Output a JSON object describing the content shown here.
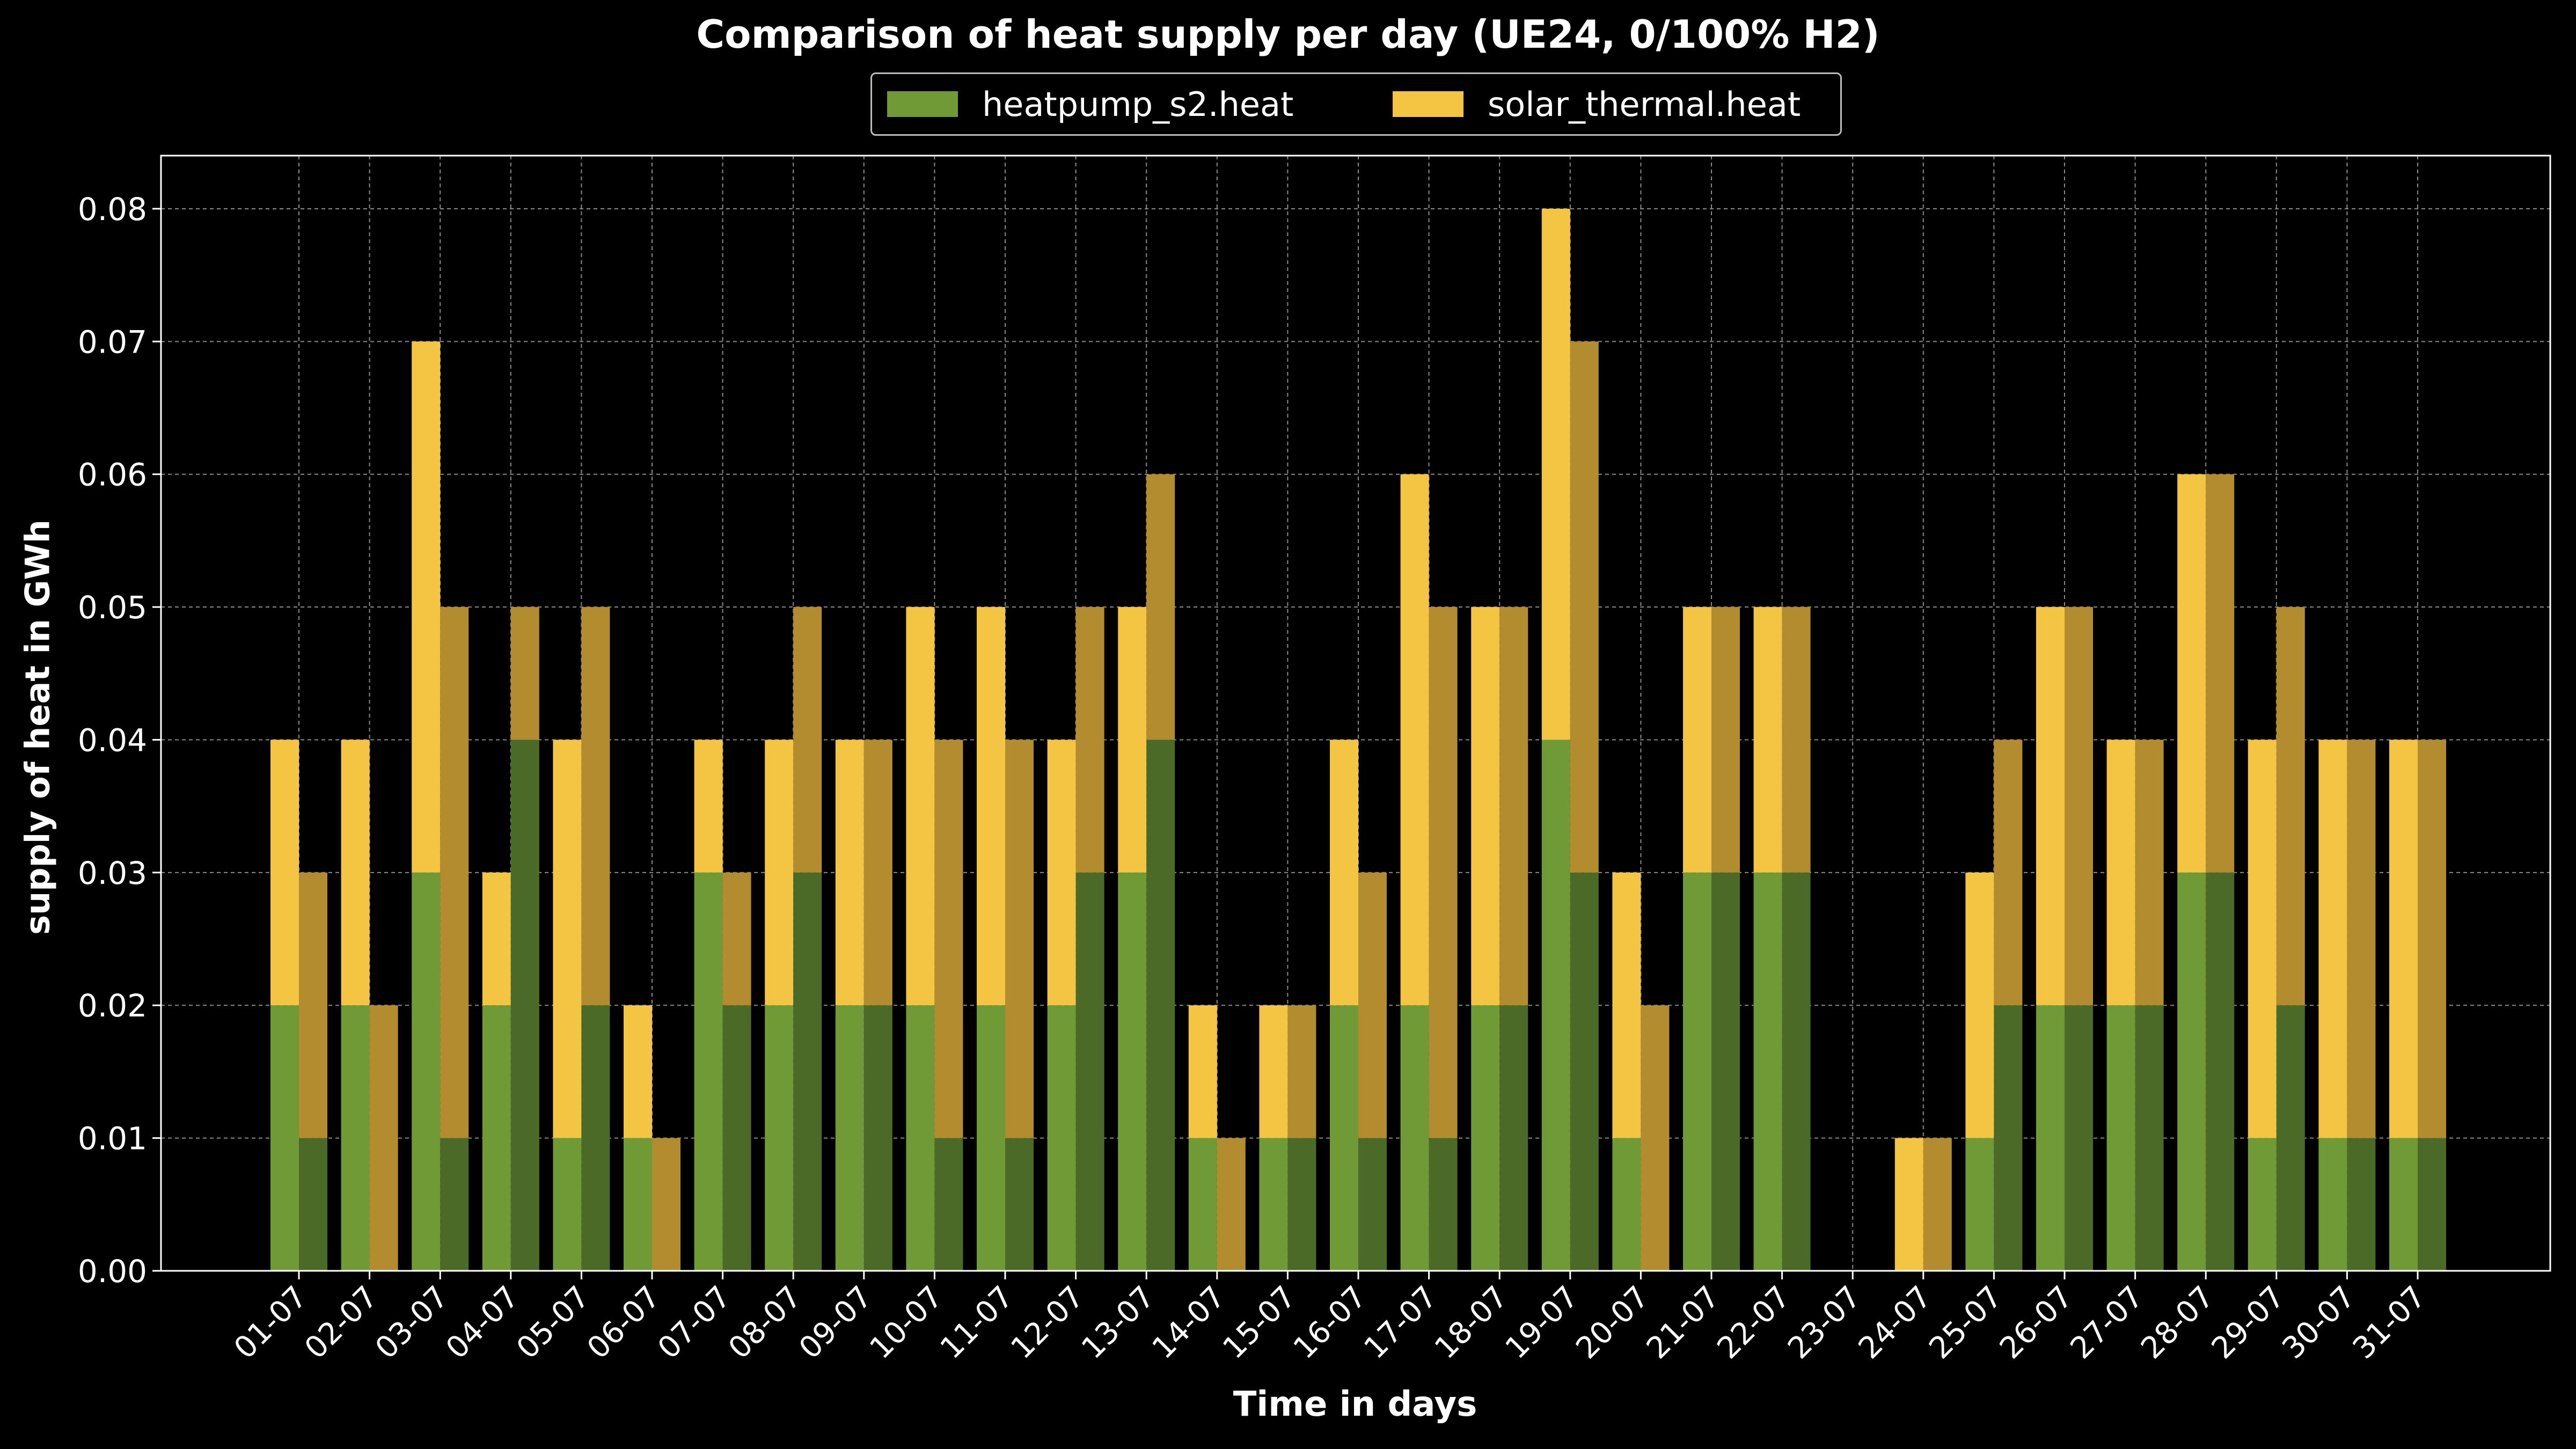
{
  "chart_data": {
    "type": "bar",
    "title": "Comparison of heat supply per day (UE24, 0/100% H2)",
    "xlabel": "Time in days",
    "ylabel": "supply of heat in GWh",
    "ylim": [
      0,
      0.084
    ],
    "yticks": [
      "0.00",
      "0.01",
      "0.02",
      "0.03",
      "0.04",
      "0.05",
      "0.06",
      "0.07",
      "0.08"
    ],
    "grid": true,
    "legend": "top-center",
    "stacked": true,
    "bar_groups": [
      "scenario 1 (left)",
      "scenario 2 (right)"
    ],
    "categories": [
      "01-07",
      "02-07",
      "03-07",
      "04-07",
      "05-07",
      "06-07",
      "07-07",
      "08-07",
      "09-07",
      "10-07",
      "11-07",
      "12-07",
      "13-07",
      "14-07",
      "15-07",
      "16-07",
      "17-07",
      "18-07",
      "19-07",
      "20-07",
      "21-07",
      "22-07",
      "23-07",
      "24-07",
      "25-07",
      "26-07",
      "27-07",
      "28-07",
      "29-07",
      "30-07",
      "31-07"
    ],
    "series": [
      {
        "name": "heatpump_s2.heat",
        "color": "#6f9a35",
        "color_second": "#4b6a27",
        "values_left": [
          0.02,
          0.02,
          0.03,
          0.02,
          0.01,
          0.01,
          0.03,
          0.02,
          0.02,
          0.02,
          0.02,
          0.02,
          0.03,
          0.01,
          0.01,
          0.02,
          0.02,
          0.02,
          0.04,
          0.01,
          0.03,
          0.03,
          0,
          0,
          0.01,
          0.02,
          0.02,
          0.03,
          0.01,
          0.01,
          0.01
        ],
        "values_right": [
          0.01,
          0,
          0.01,
          0.04,
          0.02,
          0,
          0.02,
          0.03,
          0.02,
          0.01,
          0.01,
          0.03,
          0.04,
          0,
          0.01,
          0.01,
          0.01,
          0.02,
          0.03,
          0,
          0.03,
          0.03,
          0,
          0,
          0.02,
          0.02,
          0.02,
          0.03,
          0.02,
          0.01,
          0.01
        ]
      },
      {
        "name": "solar_thermal.heat",
        "color": "#f4c542",
        "color_second": "#b28c2f",
        "values_left": [
          0.02,
          0.02,
          0.04,
          0.01,
          0.03,
          0.01,
          0.01,
          0.02,
          0.02,
          0.03,
          0.03,
          0.02,
          0.02,
          0.01,
          0.01,
          0.02,
          0.04,
          0.03,
          0.04,
          0.02,
          0.02,
          0.02,
          0,
          0.01,
          0.02,
          0.03,
          0.02,
          0.03,
          0.03,
          0.03,
          0.03
        ],
        "values_right": [
          0.02,
          0.02,
          0.04,
          0.01,
          0.03,
          0.01,
          0.01,
          0.02,
          0.02,
          0.03,
          0.03,
          0.02,
          0.02,
          0.01,
          0.01,
          0.02,
          0.04,
          0.03,
          0.04,
          0.02,
          0.02,
          0.02,
          0,
          0.01,
          0.02,
          0.03,
          0.02,
          0.03,
          0.03,
          0.03,
          0.03
        ]
      }
    ]
  }
}
